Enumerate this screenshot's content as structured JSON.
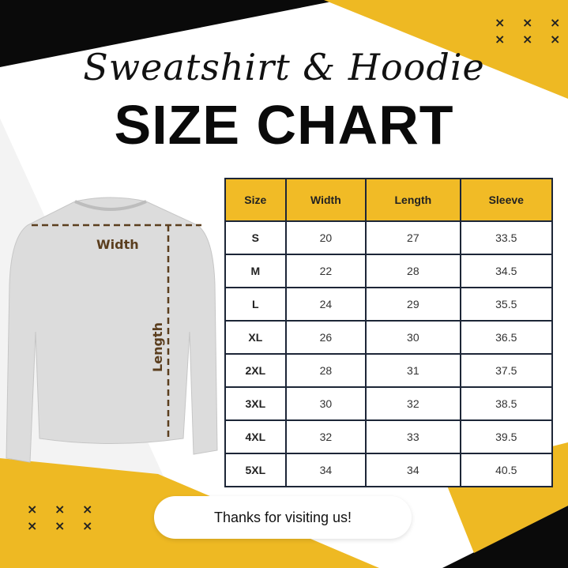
{
  "header": {
    "script_title": "Sweatshirt & Hoodie",
    "main_title": "SIZE CHART"
  },
  "illustration": {
    "width_label": "Width",
    "length_label": "Length"
  },
  "table": {
    "columns": [
      "Size",
      "Width",
      "Length",
      "Sleeve"
    ],
    "rows": [
      [
        "S",
        "20",
        "27",
        "33.5"
      ],
      [
        "M",
        "22",
        "28",
        "34.5"
      ],
      [
        "L",
        "24",
        "29",
        "35.5"
      ],
      [
        "XL",
        "26",
        "30",
        "36.5"
      ],
      [
        "2XL",
        "28",
        "31",
        "37.5"
      ],
      [
        "3XL",
        "30",
        "32",
        "38.5"
      ],
      [
        "4XL",
        "32",
        "33",
        "39.5"
      ],
      [
        "5XL",
        "34",
        "34",
        "40.5"
      ]
    ]
  },
  "decor": {
    "cross_pattern": "× × ×"
  },
  "footer": {
    "message": "Thanks for visiting us!"
  },
  "colors": {
    "accent": "#f1bb26",
    "dark": "#0a0a0a",
    "border": "#1d2637"
  }
}
